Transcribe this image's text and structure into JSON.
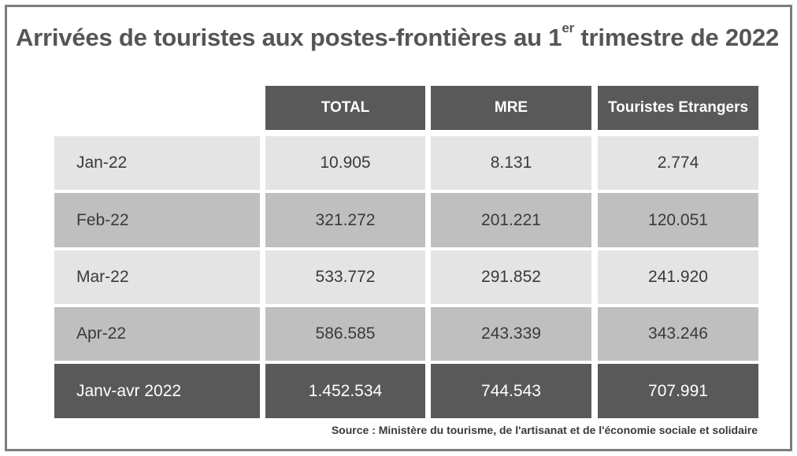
{
  "chart_data": {
    "type": "table",
    "title": "Arrivées de touristes aux postes-frontières au 1",
    "title_sup": "er",
    "title_end": " trimestre de 2022",
    "columns": [
      "TOTAL",
      "MRE",
      "Touristes Etrangers"
    ],
    "rows": [
      {
        "label": "Jan-22",
        "values": [
          "10.905",
          "8.131",
          "2.774"
        ]
      },
      {
        "label": "Feb-22",
        "values": [
          "321.272",
          "201.221",
          "120.051"
        ]
      },
      {
        "label": "Mar-22",
        "values": [
          "533.772",
          "291.852",
          "241.920"
        ]
      },
      {
        "label": "Apr-22",
        "values": [
          "586.585",
          "243.339",
          "343.246"
        ]
      },
      {
        "label": "Janv-avr 2022",
        "values": [
          "1.452.534",
          "744.543",
          "707.991"
        ]
      }
    ],
    "source": "Source : Ministère du tourisme, de l'artisanat et de l'économie sociale et solidaire"
  }
}
